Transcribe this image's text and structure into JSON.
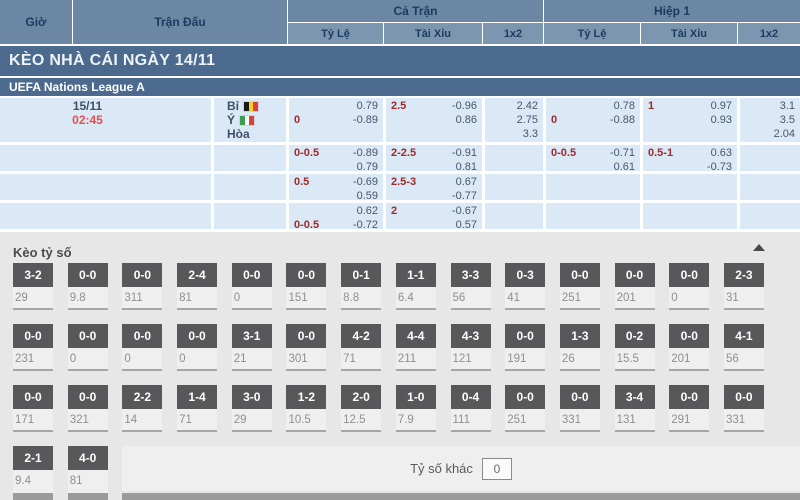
{
  "header": {
    "col_time": "Giờ",
    "col_match": "Trận Đấu",
    "group_fulltime": "Cả Trận",
    "group_firsthalf": "Hiệp 1",
    "sub_handicap": "Tỷ Lệ",
    "sub_overunder": "Tài Xỉu",
    "sub_1x2": "1x2"
  },
  "banner_title": "KÈO NHÀ CÁI NGÀY 14/11",
  "league_name": "UEFA Nations League A",
  "match": {
    "date": "15/11",
    "time": "02:45",
    "rows": [
      {
        "team": "Bỉ",
        "flag": "belgium-flag",
        "flag_colors": [
          "#1a1a1a",
          "#f5d020",
          "#e03c3c"
        ]
      },
      {
        "team": "Ý",
        "flag": "italy-flag",
        "flag_colors": [
          "#3a9e4e",
          "#ffffff",
          "#d2453f"
        ]
      },
      {
        "team": "Hòa",
        "flag": null,
        "flag_colors": []
      }
    ]
  },
  "odds_rows": [
    {
      "ft_handicap": {
        "lines": [
          {
            "hcp": "",
            "val": "0.79"
          },
          {
            "hcp": "0",
            "val": "-0.89"
          }
        ]
      },
      "ft_overunder": {
        "lines": [
          {
            "hcp": "2.5",
            "val": "-0.96"
          },
          {
            "hcp": "",
            "val": "0.86"
          }
        ]
      },
      "ft_1x2": [
        "2.42",
        "2.75",
        "3.3"
      ],
      "h1_handicap": {
        "lines": [
          {
            "hcp": "",
            "val": "0.78"
          },
          {
            "hcp": "0",
            "val": "-0.88"
          }
        ]
      },
      "h1_overunder": {
        "lines": [
          {
            "hcp": "1",
            "val": "0.97"
          },
          {
            "hcp": "",
            "val": "0.93"
          }
        ]
      },
      "h1_1x2": [
        "3.1",
        "3.5",
        "2.04"
      ]
    },
    {
      "ft_handicap": {
        "lines": [
          {
            "hcp": "0-0.5",
            "val": "-0.89"
          },
          {
            "hcp": "",
            "val": "0.79"
          }
        ]
      },
      "ft_overunder": {
        "lines": [
          {
            "hcp": "2-2.5",
            "val": "-0.91"
          },
          {
            "hcp": "",
            "val": "0.81"
          }
        ]
      },
      "ft_1x2": [],
      "h1_handicap": {
        "lines": [
          {
            "hcp": "0-0.5",
            "val": "-0.71"
          },
          {
            "hcp": "",
            "val": "0.61"
          }
        ]
      },
      "h1_overunder": {
        "lines": [
          {
            "hcp": "0.5-1",
            "val": "0.63"
          },
          {
            "hcp": "",
            "val": "-0.73"
          }
        ]
      },
      "h1_1x2": []
    },
    {
      "ft_handicap": {
        "lines": [
          {
            "hcp": "0.5",
            "val": "-0.69"
          },
          {
            "hcp": "",
            "val": "0.59"
          }
        ]
      },
      "ft_overunder": {
        "lines": [
          {
            "hcp": "2.5-3",
            "val": "0.67"
          },
          {
            "hcp": "",
            "val": "-0.77"
          }
        ]
      },
      "ft_1x2": [],
      "h1_handicap": {
        "lines": []
      },
      "h1_overunder": {
        "lines": []
      },
      "h1_1x2": []
    },
    {
      "ft_handicap": {
        "lines": [
          {
            "hcp": "",
            "val": "0.62"
          },
          {
            "hcp": "0-0.5",
            "val": "-0.72"
          }
        ]
      },
      "ft_overunder": {
        "lines": [
          {
            "hcp": "2",
            "val": "-0.67"
          },
          {
            "hcp": "",
            "val": "0.57"
          }
        ]
      },
      "ft_1x2": [],
      "h1_handicap": {
        "lines": []
      },
      "h1_overunder": {
        "lines": []
      },
      "h1_1x2": []
    }
  ],
  "score_section": {
    "title": "Kèo tỷ số",
    "collapse_icon": "chevron-up",
    "rows": [
      [
        {
          "score": "3-2",
          "odds": "29"
        },
        {
          "score": "0-0",
          "odds": "9.8"
        },
        {
          "score": "0-0",
          "odds": "311"
        },
        {
          "score": "2-4",
          "odds": "81"
        },
        {
          "score": "0-0",
          "odds": "0"
        },
        {
          "score": "0-0",
          "odds": "151"
        },
        {
          "score": "0-1",
          "odds": "8.8"
        },
        {
          "score": "1-1",
          "odds": "6.4"
        },
        {
          "score": "3-3",
          "odds": "56"
        },
        {
          "score": "0-3",
          "odds": "41"
        },
        {
          "score": "0-0",
          "odds": "251"
        },
        {
          "score": "0-0",
          "odds": "201"
        },
        {
          "score": "0-0",
          "odds": "0"
        },
        {
          "score": "2-3",
          "odds": "31"
        }
      ],
      [
        {
          "score": "0-0",
          "odds": "231"
        },
        {
          "score": "0-0",
          "odds": "0"
        },
        {
          "score": "0-0",
          "odds": "0"
        },
        {
          "score": "0-0",
          "odds": "0"
        },
        {
          "score": "3-1",
          "odds": "21"
        },
        {
          "score": "0-0",
          "odds": "301"
        },
        {
          "score": "4-2",
          "odds": "71"
        },
        {
          "score": "4-4",
          "odds": "211"
        },
        {
          "score": "4-3",
          "odds": "121"
        },
        {
          "score": "0-0",
          "odds": "191"
        },
        {
          "score": "1-3",
          "odds": "26"
        },
        {
          "score": "0-2",
          "odds": "15.5"
        },
        {
          "score": "0-0",
          "odds": "201"
        },
        {
          "score": "4-1",
          "odds": "56"
        }
      ],
      [
        {
          "score": "0-0",
          "odds": "171"
        },
        {
          "score": "0-0",
          "odds": "321"
        },
        {
          "score": "2-2",
          "odds": "14"
        },
        {
          "score": "1-4",
          "odds": "71"
        },
        {
          "score": "3-0",
          "odds": "29"
        },
        {
          "score": "1-2",
          "odds": "10.5"
        },
        {
          "score": "2-0",
          "odds": "12.5"
        },
        {
          "score": "1-0",
          "odds": "7.9"
        },
        {
          "score": "0-4",
          "odds": "111"
        },
        {
          "score": "0-0",
          "odds": "251"
        },
        {
          "score": "0-0",
          "odds": "331"
        },
        {
          "score": "3-4",
          "odds": "131"
        },
        {
          "score": "0-0",
          "odds": "291"
        },
        {
          "score": "0-0",
          "odds": "331"
        }
      ],
      [
        {
          "score": "2-1",
          "odds": "9.4"
        },
        {
          "score": "4-0",
          "odds": "81"
        }
      ]
    ],
    "other_score_label": "Tỷ số khác",
    "other_score_value": "0"
  },
  "colors": {
    "header_blue": "#6b87a3",
    "subheader_blue": "#7d96b0",
    "banner_blue": "#4b6a8d",
    "cell_blue": "#dbe8f6",
    "handicap_red": "#9e2a2b",
    "time_red": "#e4504f",
    "score_box_gray": "#58585a",
    "section_bg": "#e7e7e7"
  }
}
